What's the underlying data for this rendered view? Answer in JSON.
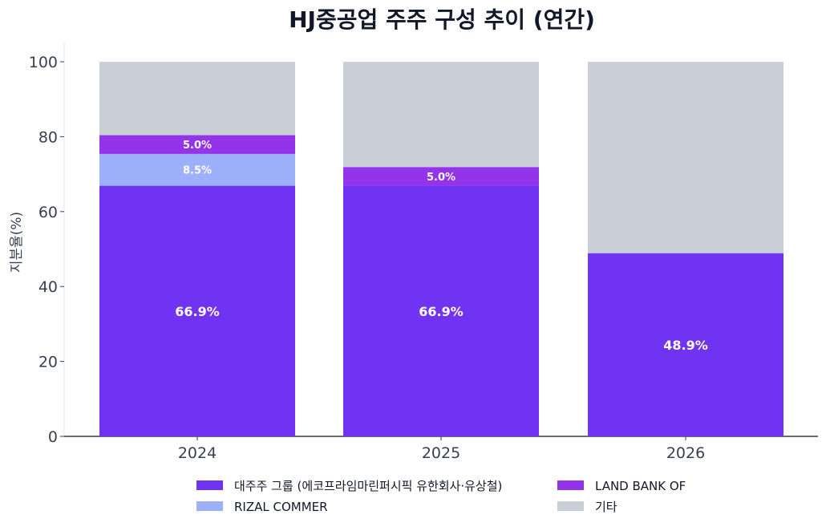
{
  "chart_data": {
    "type": "bar",
    "stacked": true,
    "title": "HJ중공업 주주 구성 추이 (연간)",
    "xlabel": "",
    "ylabel": "지분율(%)",
    "ylim": [
      0,
      100
    ],
    "yticks": [
      0,
      20,
      40,
      60,
      80,
      100
    ],
    "categories": [
      "2024",
      "2025",
      "2026"
    ],
    "series": [
      {
        "name": "대주주 그룹 (에코프라임마린퍼시픽 유한회사·유상철)",
        "color": "#7033f2",
        "values": [
          66.9,
          66.9,
          48.9
        ],
        "labels": [
          "66.9%",
          "66.9%",
          "48.9%"
        ]
      },
      {
        "name": "RIZAL COMMER",
        "color": "#9db0fb",
        "values": [
          8.5,
          0,
          0
        ],
        "labels": [
          "8.5%",
          "",
          ""
        ]
      },
      {
        "name": "LAND BANK OF",
        "color": "#9333ea",
        "values": [
          5.0,
          5.0,
          0
        ],
        "labels": [
          "5.0%",
          "5.0%",
          ""
        ]
      },
      {
        "name": "기타",
        "color": "#c9ced7",
        "values": [
          19.6,
          28.1,
          51.1
        ],
        "labels": [
          "",
          "",
          ""
        ]
      }
    ],
    "grid": false,
    "legend_position": "bottom"
  }
}
